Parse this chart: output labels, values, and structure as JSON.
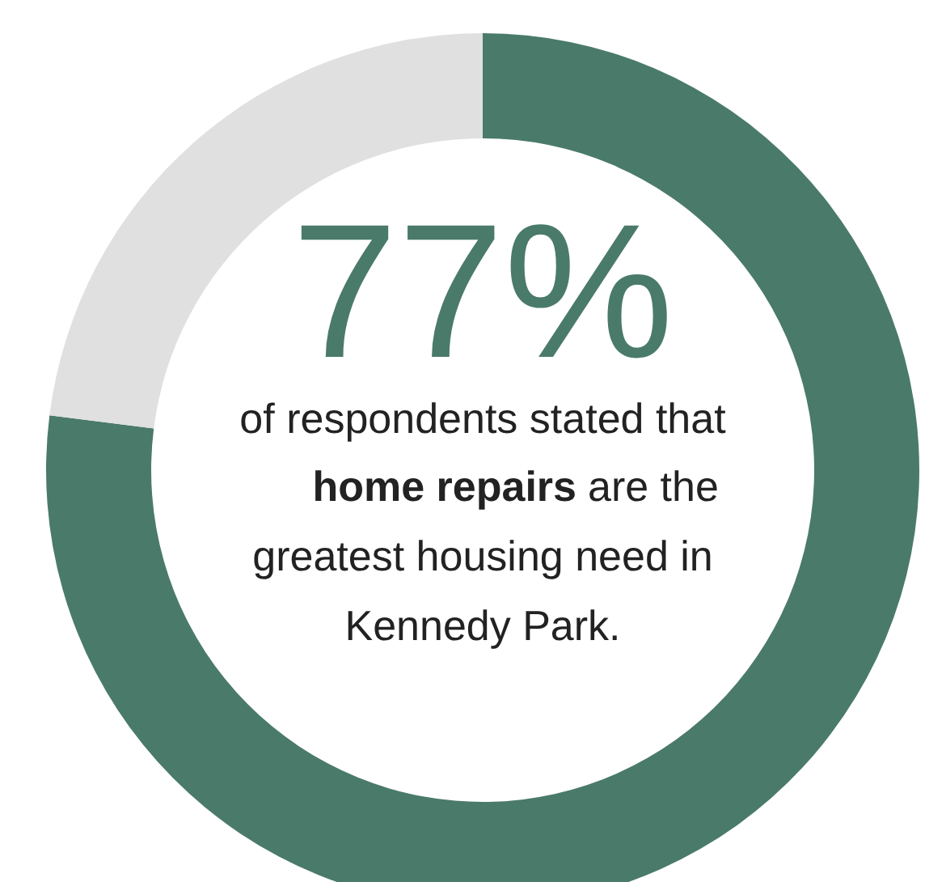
{
  "chart_data": {
    "type": "donut",
    "categories": [
      null,
      null
    ],
    "values": [
      77,
      23
    ],
    "colors": [
      "#4a7a6a",
      "#e0e0e0"
    ],
    "value_labels": [
      "77%",
      null
    ],
    "annotations": [
      "of respondents stated that",
      "home repairs",
      "are the",
      "greatest housing need in",
      "Kennedy Park."
    ]
  }
}
